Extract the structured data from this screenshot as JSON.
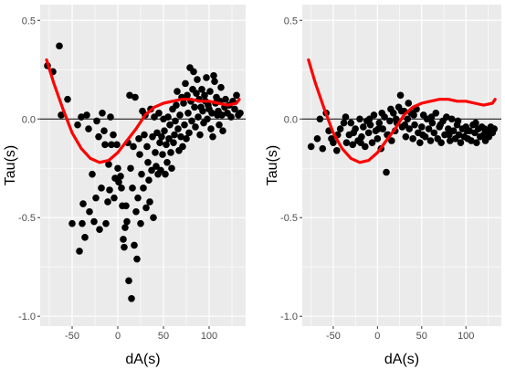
{
  "chart_data": [
    {
      "type": "scatter",
      "xlabel": "dA(s)",
      "ylabel": "Tau(s)",
      "xlim": [
        -85,
        140
      ],
      "ylim": [
        -1.05,
        0.58
      ],
      "xticks": [
        -50,
        0,
        50,
        100
      ],
      "yticks": [
        0.5,
        0.0,
        -0.5,
        -1.0
      ],
      "xtick_labels": [
        "-50",
        "0",
        "50",
        "100"
      ],
      "ytick_labels": [
        "0.5",
        "0.0",
        "-0.5",
        "-1.0"
      ],
      "grid": true,
      "hline": 0,
      "colors": {
        "points": "#000000",
        "curve": "#ff0000",
        "panel": "#ebebeb",
        "grid": "#ffffff"
      },
      "points": [
        [
          -77,
          0.27
        ],
        [
          -71,
          0.24
        ],
        [
          -64,
          0.37
        ],
        [
          -62,
          0.02
        ],
        [
          -55,
          0.1
        ],
        [
          -50,
          -0.53
        ],
        [
          -44,
          -0.03
        ],
        [
          -42,
          -0.67
        ],
        [
          -40,
          0.01
        ],
        [
          -39,
          -0.53
        ],
        [
          -38,
          -0.43
        ],
        [
          -36,
          -0.6
        ],
        [
          -34,
          0.02
        ],
        [
          -32,
          -0.05
        ],
        [
          -31,
          -0.47
        ],
        [
          -28,
          -0.28
        ],
        [
          -26,
          -0.52
        ],
        [
          -24,
          -0.4
        ],
        [
          -23,
          -0.01
        ],
        [
          -21,
          -0.09
        ],
        [
          -20,
          -0.56
        ],
        [
          -18,
          -0.35
        ],
        [
          -17,
          0.03
        ],
        [
          -15,
          -0.06
        ],
        [
          -14,
          -0.13
        ],
        [
          -13,
          -0.53
        ],
        [
          -11,
          -0.42
        ],
        [
          -10,
          -0.23
        ],
        [
          -9,
          -0.36
        ],
        [
          -8,
          0.01
        ],
        [
          -7,
          -0.13
        ],
        [
          -5,
          -0.08
        ],
        [
          -4,
          -0.4
        ],
        [
          -3,
          -0.3
        ],
        [
          -1,
          -0.13
        ],
        [
          0,
          -0.25
        ],
        [
          1,
          -0.32
        ],
        [
          3,
          -0.29
        ],
        [
          4,
          -0.35
        ],
        [
          5,
          -0.44
        ],
        [
          6,
          -0.61
        ],
        [
          7,
          -0.65
        ],
        [
          8,
          -0.55
        ],
        [
          9,
          -0.44
        ],
        [
          10,
          -0.52
        ],
        [
          11,
          -0.12
        ],
        [
          12,
          -0.82
        ],
        [
          13,
          0.12
        ],
        [
          14,
          -0.25
        ],
        [
          15,
          -0.91
        ],
        [
          16,
          -0.35
        ],
        [
          17,
          -0.14
        ],
        [
          18,
          -0.64
        ],
        [
          19,
          0.11
        ],
        [
          20,
          -0.47
        ],
        [
          21,
          -0.71
        ],
        [
          22,
          -0.4
        ],
        [
          23,
          -0.1
        ],
        [
          24,
          -0.18
        ],
        [
          25,
          -0.53
        ],
        [
          26,
          -0.28
        ],
        [
          27,
          0.04
        ],
        [
          28,
          -0.35
        ],
        [
          29,
          -0.08
        ],
        [
          30,
          0.02
        ],
        [
          31,
          -0.45
        ],
        [
          32,
          -0.14
        ],
        [
          33,
          -0.22
        ],
        [
          34,
          -0.31
        ],
        [
          35,
          -0.42
        ],
        [
          36,
          0.05
        ],
        [
          37,
          -0.26
        ],
        [
          38,
          -0.09
        ],
        [
          39,
          -0.5
        ],
        [
          40,
          0.01
        ],
        [
          41,
          -0.17
        ],
        [
          42,
          -0.24
        ],
        [
          43,
          -0.07
        ],
        [
          44,
          -0.28
        ],
        [
          45,
          0.03
        ],
        [
          46,
          -0.12
        ],
        [
          47,
          -0.26
        ],
        [
          48,
          -0.09
        ],
        [
          49,
          -0.18
        ],
        [
          50,
          0.0
        ],
        [
          51,
          -0.06
        ],
        [
          52,
          -0.28
        ],
        [
          53,
          -0.13
        ],
        [
          54,
          -0.22
        ],
        [
          55,
          0.01
        ],
        [
          56,
          -0.1
        ],
        [
          57,
          -0.03
        ],
        [
          58,
          -0.17
        ],
        [
          59,
          -0.25
        ],
        [
          60,
          0.05
        ],
        [
          61,
          -0.12
        ],
        [
          62,
          -0.08
        ],
        [
          63,
          -0.01
        ],
        [
          64,
          0.07
        ],
        [
          65,
          0.14
        ],
        [
          66,
          -0.05
        ],
        [
          67,
          -0.16
        ],
        [
          68,
          0.02
        ],
        [
          69,
          -0.09
        ],
        [
          70,
          0.11
        ],
        [
          71,
          -0.14
        ],
        [
          72,
          0.08
        ],
        [
          73,
          -0.03
        ],
        [
          74,
          0.18
        ],
        [
          75,
          -0.1
        ],
        [
          76,
          0.12
        ],
        [
          77,
          0.03
        ],
        [
          78,
          -0.07
        ],
        [
          79,
          0.26
        ],
        [
          80,
          0.09
        ],
        [
          81,
          -0.01
        ],
        [
          82,
          0.15
        ],
        [
          83,
          0.24
        ],
        [
          84,
          0.06
        ],
        [
          85,
          -0.04
        ],
        [
          86,
          0.13
        ],
        [
          87,
          0.2
        ],
        [
          88,
          0.01
        ],
        [
          89,
          0.1
        ],
        [
          90,
          -0.08
        ],
        [
          91,
          0.06
        ],
        [
          92,
          0.15
        ],
        [
          93,
          0.04
        ],
        [
          94,
          -0.02
        ],
        [
          95,
          0.12
        ],
        [
          96,
          0.09
        ],
        [
          97,
          0.21
        ],
        [
          98,
          0.0
        ],
        [
          99,
          0.07
        ],
        [
          100,
          0.05
        ],
        [
          101,
          0.14
        ],
        [
          102,
          -0.05
        ],
        [
          103,
          0.03
        ],
        [
          104,
          -0.09
        ],
        [
          105,
          0.22
        ],
        [
          106,
          0.19
        ],
        [
          107,
          0.08
        ],
        [
          108,
          0.11
        ],
        [
          109,
          0.02
        ],
        [
          110,
          0.04
        ],
        [
          111,
          -0.03
        ],
        [
          112,
          0.09
        ],
        [
          113,
          0.16
        ],
        [
          114,
          0.02
        ],
        [
          115,
          -0.06
        ],
        [
          117,
          0.06
        ],
        [
          118,
          0.1
        ],
        [
          120,
          0.03
        ],
        [
          122,
          0.07
        ],
        [
          124,
          0.01
        ],
        [
          126,
          0.09
        ],
        [
          128,
          0.05
        ],
        [
          130,
          0.12
        ],
        [
          132,
          0.02
        ],
        [
          134,
          0.03
        ]
      ],
      "curve": [
        [
          -78,
          0.3
        ],
        [
          -70,
          0.18
        ],
        [
          -60,
          0.05
        ],
        [
          -50,
          -0.07
        ],
        [
          -40,
          -0.15
        ],
        [
          -30,
          -0.2
        ],
        [
          -20,
          -0.22
        ],
        [
          -10,
          -0.21
        ],
        [
          0,
          -0.17
        ],
        [
          10,
          -0.11
        ],
        [
          20,
          -0.05
        ],
        [
          30,
          0.02
        ],
        [
          40,
          0.06
        ],
        [
          50,
          0.08
        ],
        [
          60,
          0.09
        ],
        [
          70,
          0.1
        ],
        [
          80,
          0.1
        ],
        [
          90,
          0.09
        ],
        [
          100,
          0.09
        ],
        [
          110,
          0.08
        ],
        [
          120,
          0.07
        ],
        [
          130,
          0.08
        ],
        [
          133,
          0.1
        ]
      ]
    },
    {
      "type": "scatter",
      "xlabel": "dA(s)",
      "ylabel": "Tau(s)",
      "xlim": [
        -85,
        140
      ],
      "ylim": [
        -1.05,
        0.58
      ],
      "xticks": [
        -50,
        0,
        50,
        100
      ],
      "yticks": [
        0.5,
        0.0,
        -0.5,
        -1.0
      ],
      "xtick_labels": [
        "-50",
        "0",
        "50",
        "100"
      ],
      "ytick_labels": [
        "0.5",
        "0.0",
        "-0.5",
        "-1.0"
      ],
      "grid": true,
      "hline": 0,
      "colors": {
        "points": "#000000",
        "curve": "#ff0000",
        "panel": "#ebebeb",
        "grid": "#ffffff"
      },
      "points": [
        [
          -75,
          -0.14
        ],
        [
          -68,
          -0.1
        ],
        [
          -62,
          -0.15
        ],
        [
          -58,
          0.03
        ],
        [
          -55,
          -0.06
        ],
        [
          -50,
          -0.12
        ],
        [
          -46,
          -0.16
        ],
        [
          -42,
          -0.05
        ],
        [
          -38,
          -0.02
        ],
        [
          -35,
          -0.12
        ],
        [
          -32,
          -0.08
        ],
        [
          -30,
          -0.02
        ],
        [
          -28,
          -0.13
        ],
        [
          -25,
          -0.05
        ],
        [
          -22,
          -0.11
        ],
        [
          -20,
          0.0
        ],
        [
          -18,
          -0.09
        ],
        [
          -16,
          -0.04
        ],
        [
          -14,
          -0.14
        ],
        [
          -12,
          -0.01
        ],
        [
          -10,
          -0.07
        ],
        [
          -8,
          -0.03
        ],
        [
          -6,
          -0.12
        ],
        [
          -4,
          0.02
        ],
        [
          -2,
          -0.06
        ],
        [
          0,
          -0.1
        ],
        [
          2,
          -0.02
        ],
        [
          4,
          -0.15
        ],
        [
          6,
          -0.05
        ],
        [
          8,
          0.01
        ],
        [
          10,
          -0.27
        ],
        [
          12,
          -0.08
        ],
        [
          14,
          -0.01
        ],
        [
          16,
          -0.11
        ],
        [
          18,
          0.03
        ],
        [
          20,
          -0.06
        ],
        [
          22,
          -0.02
        ],
        [
          24,
          0.06
        ],
        [
          26,
          0.12
        ],
        [
          28,
          -0.04
        ],
        [
          30,
          0.04
        ],
        [
          32,
          -0.09
        ],
        [
          34,
          0.0
        ],
        [
          36,
          -0.05
        ],
        [
          38,
          0.03
        ],
        [
          40,
          -0.1
        ],
        [
          42,
          -0.03
        ],
        [
          44,
          0.05
        ],
        [
          46,
          -0.07
        ],
        [
          48,
          -0.12
        ],
        [
          50,
          -0.04
        ],
        [
          52,
          0.02
        ],
        [
          54,
          -0.09
        ],
        [
          56,
          0.0
        ],
        [
          58,
          -0.05
        ],
        [
          60,
          -0.11
        ],
        [
          62,
          -0.02
        ],
        [
          64,
          -0.07
        ],
        [
          66,
          0.03
        ],
        [
          68,
          -0.1
        ],
        [
          70,
          -0.04
        ],
        [
          72,
          -0.12
        ],
        [
          74,
          -0.01
        ],
        [
          76,
          -0.08
        ],
        [
          78,
          0.01
        ],
        [
          80,
          -0.05
        ],
        [
          82,
          -0.11
        ],
        [
          84,
          0.0
        ],
        [
          86,
          -0.06
        ],
        [
          88,
          -0.1
        ],
        [
          90,
          -0.03
        ],
        [
          92,
          -0.08
        ],
        [
          94,
          -0.12
        ],
        [
          96,
          -0.05
        ],
        [
          98,
          -0.09
        ],
        [
          100,
          -0.04
        ],
        [
          102,
          -0.1
        ],
        [
          104,
          -0.06
        ],
        [
          106,
          -0.11
        ],
        [
          108,
          -0.03
        ],
        [
          110,
          -0.07
        ],
        [
          112,
          -0.12
        ],
        [
          114,
          -0.05
        ],
        [
          116,
          -0.09
        ],
        [
          118,
          -0.04
        ],
        [
          120,
          -0.08
        ],
        [
          122,
          -0.11
        ],
        [
          124,
          -0.06
        ],
        [
          126,
          -0.09
        ],
        [
          128,
          -0.04
        ],
        [
          130,
          -0.07
        ],
        [
          132,
          -0.05
        ],
        [
          -65,
          0.0
        ],
        [
          -52,
          -0.1
        ],
        [
          -45,
          -0.08
        ],
        [
          -36,
          0.01
        ],
        [
          -27,
          -0.07
        ],
        [
          -19,
          -0.12
        ],
        [
          -9,
          0.0
        ],
        [
          1,
          -0.05
        ],
        [
          11,
          -0.08
        ],
        [
          21,
          0.0
        ],
        [
          31,
          -0.03
        ],
        [
          41,
          0.02
        ],
        [
          51,
          -0.08
        ],
        [
          61,
          0.01
        ],
        [
          71,
          -0.03
        ],
        [
          81,
          -0.08
        ],
        [
          91,
          -0.01
        ],
        [
          101,
          -0.06
        ],
        [
          111,
          -0.02
        ],
        [
          121,
          -0.05
        ],
        [
          27,
          0.04
        ],
        [
          35,
          0.08
        ],
        [
          15,
          0.05
        ],
        [
          5,
          0.03
        ]
      ],
      "curve": [
        [
          -78,
          0.3
        ],
        [
          -70,
          0.18
        ],
        [
          -60,
          0.05
        ],
        [
          -50,
          -0.07
        ],
        [
          -40,
          -0.15
        ],
        [
          -30,
          -0.2
        ],
        [
          -20,
          -0.22
        ],
        [
          -10,
          -0.21
        ],
        [
          0,
          -0.17
        ],
        [
          10,
          -0.11
        ],
        [
          20,
          -0.05
        ],
        [
          30,
          0.02
        ],
        [
          40,
          0.06
        ],
        [
          50,
          0.08
        ],
        [
          60,
          0.09
        ],
        [
          70,
          0.1
        ],
        [
          80,
          0.1
        ],
        [
          90,
          0.09
        ],
        [
          100,
          0.09
        ],
        [
          110,
          0.08
        ],
        [
          120,
          0.07
        ],
        [
          130,
          0.08
        ],
        [
          133,
          0.1
        ]
      ]
    }
  ]
}
